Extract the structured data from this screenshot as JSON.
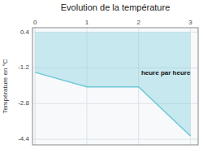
{
  "chart_data": {
    "type": "area",
    "title": "Evolution de la température",
    "y_label": "Température en °C",
    "annotations": [
      {
        "text": "heure par heure",
        "x": 2.05,
        "y": -1.45
      }
    ],
    "x": [
      0,
      1,
      2,
      3
    ],
    "series": [
      {
        "values": [
          -1.4,
          -2.05,
          -2.05,
          -4.25
        ],
        "color": "#6dc8d8",
        "fill_top": 0.4
      }
    ],
    "xlim": [
      -0.05,
      3.15
    ],
    "ylim": [
      -4.65,
      0.6
    ],
    "xticks": [
      0,
      1,
      2,
      3
    ],
    "yticks": [
      0.4,
      -1.2,
      -2.8,
      -4.4
    ],
    "grid": true
  }
}
